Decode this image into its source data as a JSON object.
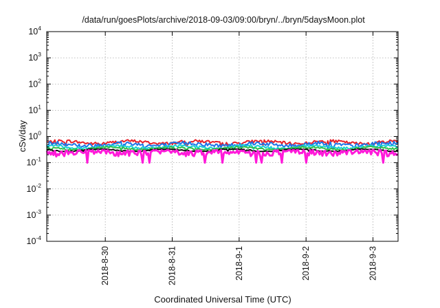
{
  "chart_data": {
    "type": "area",
    "title": "/data/run/goesPlots/archive/2018-09-03/09:00/bryn/../bryn/5daysMoon.plot",
    "xlabel": "Coordinated Universal Time (UTC)",
    "ylabel": "cSv/day",
    "yscale": "log",
    "ylim": [
      0.0001,
      10000
    ],
    "y_ticks": [
      {
        "base": "10",
        "exp": "-4",
        "value": 0.0001
      },
      {
        "base": "10",
        "exp": "-3",
        "value": 0.001
      },
      {
        "base": "10",
        "exp": "-2",
        "value": 0.01
      },
      {
        "base": "10",
        "exp": "-1",
        "value": 0.1
      },
      {
        "base": "10",
        "exp": "0",
        "value": 1
      },
      {
        "base": "10",
        "exp": "1",
        "value": 10
      },
      {
        "base": "10",
        "exp": "2",
        "value": 100
      },
      {
        "base": "10",
        "exp": "3",
        "value": 1000
      },
      {
        "base": "10",
        "exp": "4",
        "value": 10000
      }
    ],
    "xlim": [
      "2018-08-29 03:00",
      "2018-09-03 09:00"
    ],
    "x_ticks": [
      {
        "label": "2018-8-30",
        "value": "2018-08-30 00:00"
      },
      {
        "label": "2018-8-31",
        "value": "2018-08-31 00:00"
      },
      {
        "label": "2018-9-1",
        "value": "2018-09-01 00:00"
      },
      {
        "label": "2018-9-2",
        "value": "2018-09-02 00:00"
      },
      {
        "label": "2018-9-3",
        "value": "2018-09-03 00:00"
      }
    ],
    "grid": true,
    "colors": {
      "red": "#e8202a",
      "blue": "#1e74e8",
      "cyan": "#17cfd6",
      "green": "#2fbf4a",
      "black": "#111111",
      "magenta": "#ff1ad9"
    },
    "series": [
      {
        "color": "red",
        "level_approx": 0.6,
        "range": [
          0.45,
          0.75
        ]
      },
      {
        "color": "blue",
        "level_approx": 0.5,
        "range": [
          0.35,
          0.7
        ]
      },
      {
        "color": "cyan",
        "level_approx": 0.4,
        "range": [
          0.33,
          0.5
        ]
      },
      {
        "color": "green",
        "level_approx": 0.35,
        "range": [
          0.3,
          0.42
        ]
      },
      {
        "color": "black",
        "level_approx": 0.3,
        "range": [
          0.27,
          0.33
        ]
      },
      {
        "color": "magenta",
        "level_approx": 0.25,
        "range": [
          0.1,
          0.3
        ]
      }
    ]
  }
}
